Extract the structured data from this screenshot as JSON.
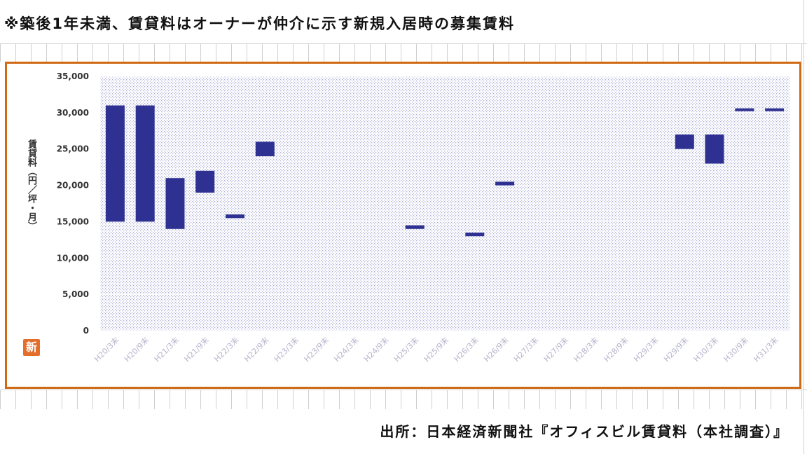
{
  "header": {
    "note": "※築後1年未満、賃貸料はオーナーが仲介に示す新規入居時の募集賃料"
  },
  "footer": {
    "source": "出所：日本経済新聞社『オフィスビル賃貸料（本社調査）』"
  },
  "logo": {
    "text": "新",
    "color": "#e36d2b"
  },
  "colors": {
    "frame": "#d06a14",
    "bar": "#2e3192",
    "plot_dots": "#a9acd6"
  },
  "chart_data": {
    "type": "bar",
    "subtype": "floating-range",
    "title": "",
    "xlabel": "",
    "ylabel": "賃貸料（円／坪・月）",
    "ylim": [
      0,
      35000
    ],
    "yticks": [
      0,
      5000,
      10000,
      15000,
      20000,
      25000,
      30000,
      35000
    ],
    "ytick_labels": [
      "0",
      "5,000",
      "10,000",
      "15,000",
      "20,000",
      "25,000",
      "30,000",
      "35,000"
    ],
    "grid": true,
    "legend": "none",
    "categories": [
      "H20/3末",
      "H20/9末",
      "H21/3末",
      "H21/9末",
      "H22/3末",
      "H22/9末",
      "H23/3末",
      "H23/9末",
      "H24/3末",
      "H24/9末",
      "H25/3末",
      "H25/9末",
      "H26/3末",
      "H26/9末",
      "H27/3末",
      "H27/9末",
      "H28/3末",
      "H28/9末",
      "H29/3末",
      "H29/9末",
      "H30/3末",
      "H30/9末",
      "H31/3末"
    ],
    "series": [
      {
        "low": [
          15000,
          15000,
          14000,
          19000,
          15500,
          24000,
          null,
          null,
          null,
          null,
          14000,
          null,
          13000,
          20000,
          null,
          null,
          null,
          null,
          null,
          25000,
          23000,
          30200,
          30200
        ],
        "high": [
          31000,
          31000,
          21000,
          22000,
          16000,
          26000,
          null,
          null,
          null,
          null,
          14500,
          null,
          13500,
          20500,
          null,
          null,
          null,
          null,
          null,
          27000,
          27000,
          30600,
          30600
        ]
      }
    ]
  }
}
